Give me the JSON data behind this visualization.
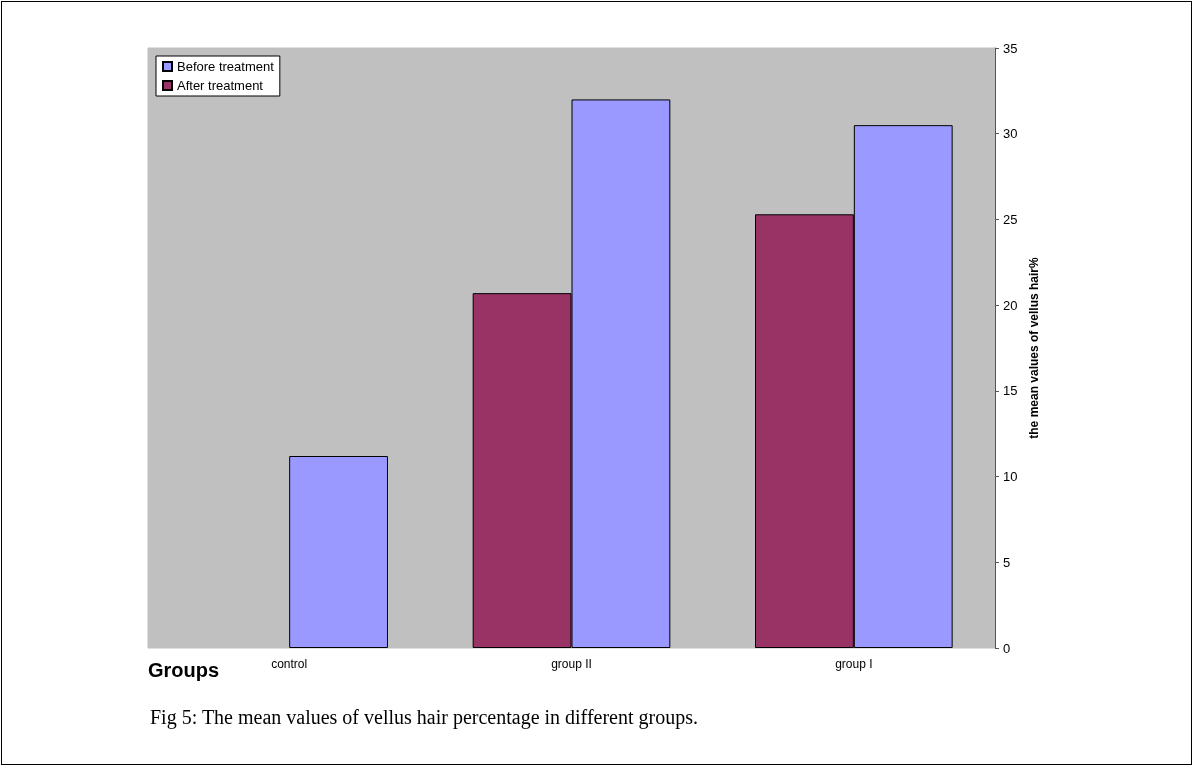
{
  "chart_data": {
    "type": "bar",
    "xlabel": "Groups",
    "ylabel": "the mean values of vellus hair%",
    "categories": [
      "control",
      "group II",
      "group I"
    ],
    "series": [
      {
        "name": "After treatment",
        "color": "#993366",
        "values": [
          null,
          20.7,
          25.3
        ]
      },
      {
        "name": "Before treatment",
        "color": "#9999ff",
        "values": [
          11.2,
          32.0,
          30.5
        ]
      }
    ],
    "ylim": [
      0,
      35
    ],
    "yticks": [
      0,
      5,
      10,
      15,
      20,
      25,
      30,
      35
    ],
    "grid": false,
    "legend": "top left",
    "annotations": [
      "Fig 5: The mean values of vellus hair percentage in different groups."
    ]
  }
}
